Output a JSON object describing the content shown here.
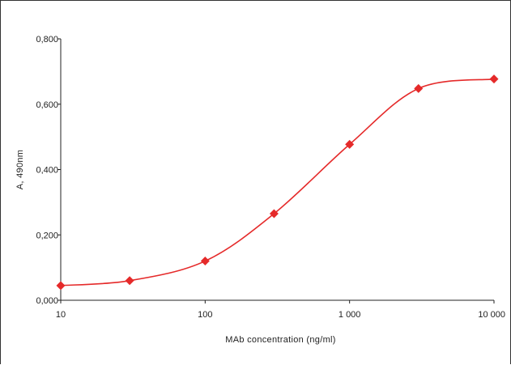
{
  "chart_data": {
    "type": "line",
    "title": "",
    "xlabel": "MAb concentration (ng/ml)",
    "ylabel": "A, 490nm",
    "x_scale": "log",
    "xlim": [
      10,
      10000
    ],
    "ylim": [
      0,
      0.8
    ],
    "x_ticks": [
      10,
      100,
      1000,
      10000
    ],
    "x_tick_labels": [
      "10",
      "100",
      "1 000",
      "10 000"
    ],
    "y_ticks": [
      0,
      0.2,
      0.4,
      0.6,
      0.8
    ],
    "y_tick_labels": [
      "0,000",
      "0,200",
      "0,400",
      "0,600",
      "0,800"
    ],
    "grid": false,
    "legend": "none",
    "series": [
      {
        "color": "#e52a2a",
        "marker": "diamond",
        "x": [
          10,
          30,
          100,
          300,
          1000,
          3000,
          10000
        ],
        "y": [
          0.045,
          0.06,
          0.12,
          0.265,
          0.477,
          0.648,
          0.677
        ]
      }
    ]
  }
}
